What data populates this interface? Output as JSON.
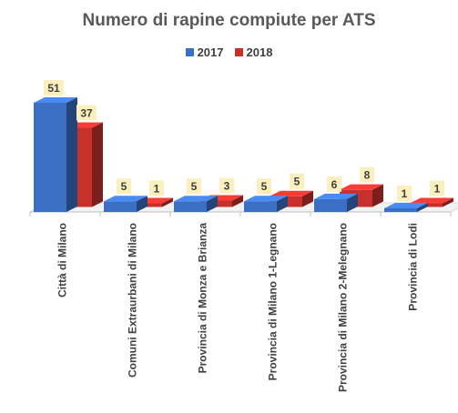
{
  "chart_data": {
    "type": "bar",
    "title": "Numero di rapine compiute per ATS",
    "categories": [
      "Città di Milano",
      "Comuni Extraurbani di Milano",
      "Provincia di Monza e Brianza",
      "Provincia di Milano 1-Legnano",
      "Provincia di Milano 2-Melegnano",
      "Provincia di Lodi"
    ],
    "series": [
      {
        "name": "2017",
        "values": [
          51,
          5,
          5,
          5,
          6,
          1
        ],
        "color": "#3a6fc4"
      },
      {
        "name": "2018",
        "values": [
          37,
          1,
          3,
          5,
          8,
          1
        ],
        "color": "#c8302c"
      }
    ],
    "legend_position": "top",
    "grid": false,
    "data_labels": true,
    "ylim": [
      0,
      51
    ]
  }
}
